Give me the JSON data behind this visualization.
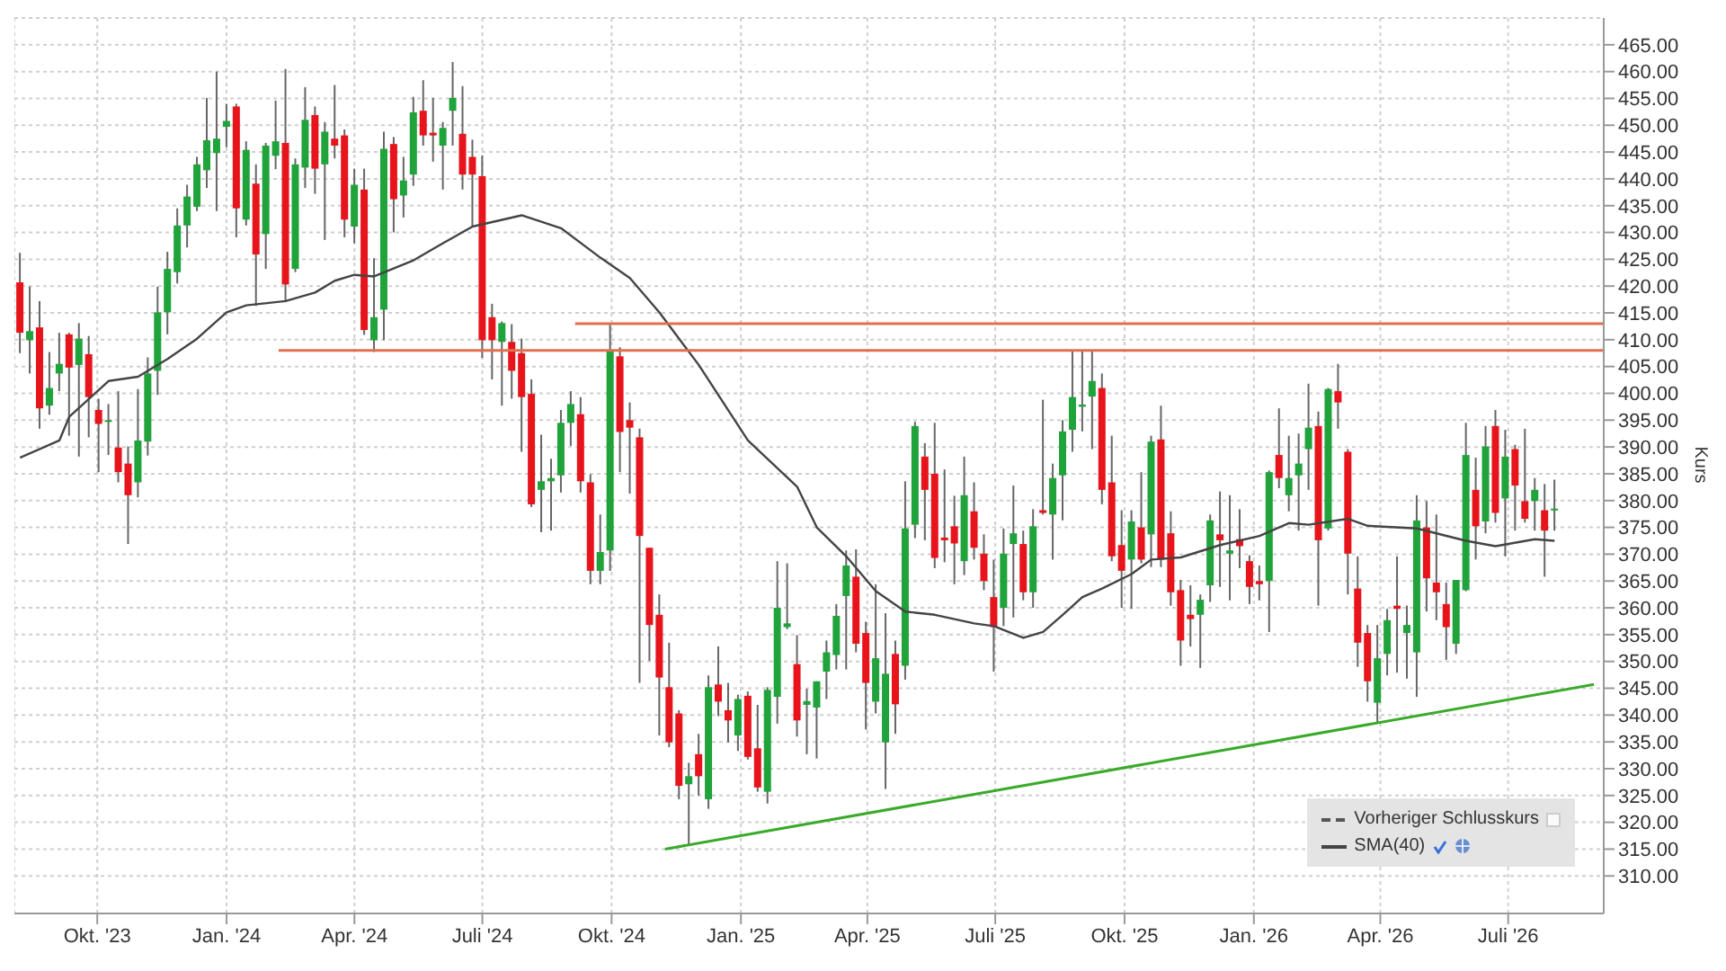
{
  "chart_data": {
    "type": "candlestick",
    "ylabel": "Kurs",
    "grid": true,
    "legend": "bottom right",
    "colors": [
      "#e8141b",
      "#1fa33a",
      "#e8141b",
      "#1fa33a",
      "#1fa33a",
      "#e8141b",
      "#1fa33a",
      "#e8141b",
      "#e8141b",
      "#1fa33a",
      "#e8141b",
      "#e8141b",
      "#1fa33a",
      "#1fa33a",
      "#1fa33a",
      "#1fa33a",
      "#1fa33a",
      "#1fa33a",
      "#1fa33a",
      "#1fa33a",
      "#1fa33a",
      "#1fa33a",
      "#e8141b",
      "#1fa33a",
      "#e8141b",
      "#1fa33a",
      "#1fa33a",
      "#e8141b",
      "#1fa33a",
      "#1fa33a",
      "#e8141b",
      "#1fa33a",
      "#e8141b",
      "#e8141b",
      "#1fa33a",
      "#e8141b",
      "#1fa33a",
      "#1fa33a",
      "#e8141b",
      "#1fa33a",
      "#1fa33a",
      "#e8141b",
      "#e8141b",
      "#1fa33a",
      "#1fa33a",
      "#e8141b",
      "#e8141b",
      "#e8141b",
      "#e8141b",
      "#1fa33a",
      "#e8141b",
      "#e8141b",
      "#e8141b",
      "#1fa33a",
      "#1fa33a",
      "#1fa33a",
      "#1fa33a",
      "#e8141b",
      "#e8141b",
      "#1fa33a",
      "#1fa33a",
      "#e8141b",
      "#e8141b",
      "#e8141b",
      "#e8141b",
      "#e8141b",
      "#e8141b",
      "#e8141b",
      "#1fa33a",
      "#e8141b",
      "#1fa33a",
      "#e8141b",
      "#e8141b",
      "#1fa33a",
      "#e8141b",
      "#e8141b",
      "#1fa33a",
      "#1fa33a",
      "#1fa33a",
      "#e8141b",
      "#1fa33a",
      "#1fa33a",
      "#1fa33a",
      "#1fa33a",
      "#1fa33a",
      "#e8141b",
      "#e8141b",
      "#1fa33a",
      "#1fa33a",
      "#e8141b",
      "#1fa33a",
      "#1fa33a",
      "#e8141b",
      "#e8141b",
      "#e8141b",
      "#e8141b",
      "#1fa33a",
      "#e8141b",
      "#e8141b",
      "#e8141b",
      "#1fa33a",
      "#1fa33a",
      "#e8141b",
      "#1fa33a",
      "#e8141b",
      "#1fa33a",
      "#1fa33a",
      "#1fa33a",
      "#1fa33a",
      "#1fa33a",
      "#e8141b",
      "#e8141b",
      "#e8141b",
      "#1fa33a",
      "#e8141b",
      "#1fa33a",
      "#e8141b",
      "#e8141b",
      "#e8141b",
      "#e8141b",
      "#1fa33a",
      "#1fa33a",
      "#e8141b",
      "#1fa33a",
      "#e8141b",
      "#e8141b",
      "#e8141b",
      "#1fa33a",
      "#e8141b",
      "#1fa33a",
      "#1fa33a",
      "#1fa33a",
      "#e8141b",
      "#1fa33a",
      "#e8141b",
      "#e8141b",
      "#e8141b",
      "#e8141b",
      "#1fa33a",
      "#1fa33a",
      "#e8141b",
      "#1fa33a",
      "#1fa33a",
      "#e8141b",
      "#e8141b",
      "#e8141b",
      "#1fa33a",
      "#1fa33a",
      "#e8141b",
      "#1fa33a",
      "#e8141b",
      "#1fa33a",
      "#e8141b",
      "#e8141b",
      "#1fa33a",
      "#e8141b",
      "#1fa33a"
    ],
    "annotations": [
      "Vorheriger Schlusskurs"
    ],
    "xlim": [
      "2023-08-03",
      "2026-09-07"
    ],
    "xticks": [
      {
        "value": "2023-10-01",
        "label": "Okt. '23"
      },
      {
        "value": "2024-01-01",
        "label": "Jan. '24"
      },
      {
        "value": "2024-04-01",
        "label": "Apr. '24"
      },
      {
        "value": "2024-07-01",
        "label": "Juli '24"
      },
      {
        "value": "2024-10-01",
        "label": "Okt. '24"
      },
      {
        "value": "2025-01-01",
        "label": "Jan. '25"
      },
      {
        "value": "2025-04-01",
        "label": "Apr. '25"
      },
      {
        "value": "2025-07-01",
        "label": "Juli '25"
      },
      {
        "value": "2025-10-01",
        "label": "Okt. '25"
      },
      {
        "value": "2026-01-01",
        "label": "Jan. '26"
      },
      {
        "value": "2026-04-01",
        "label": "Apr. '26"
      },
      {
        "value": "2026-07-01",
        "label": "Juli '26"
      }
    ],
    "ylim": [
      303,
      470
    ],
    "yticks": [
      {
        "value": 310,
        "label": "310.00"
      },
      {
        "value": 315,
        "label": "315.00"
      },
      {
        "value": 320,
        "label": "320.00"
      },
      {
        "value": 325,
        "label": "325.00"
      },
      {
        "value": 330,
        "label": "330.00"
      },
      {
        "value": 335,
        "label": "335.00"
      },
      {
        "value": 340,
        "label": "340.00"
      },
      {
        "value": 345,
        "label": "345.00"
      },
      {
        "value": 350,
        "label": "350.00"
      },
      {
        "value": 355,
        "label": "355.00"
      },
      {
        "value": 360,
        "label": "360.00"
      },
      {
        "value": 365,
        "label": "365.00"
      },
      {
        "value": 370,
        "label": "370.00"
      },
      {
        "value": 375,
        "label": "375.00"
      },
      {
        "value": 380,
        "label": "380.00"
      },
      {
        "value": 385,
        "label": "385.00"
      },
      {
        "value": 390,
        "label": "390.00"
      },
      {
        "value": 395,
        "label": "395.00"
      },
      {
        "value": 400,
        "label": "400.00"
      },
      {
        "value": 405,
        "label": "405.00"
      },
      {
        "value": 410,
        "label": "410.00"
      },
      {
        "value": 415,
        "label": "415.00"
      },
      {
        "value": 420,
        "label": "420.00"
      },
      {
        "value": 425,
        "label": "425.00"
      },
      {
        "value": 430,
        "label": "430.00"
      },
      {
        "value": 435,
        "label": "435.00"
      },
      {
        "value": 440,
        "label": "440.00"
      },
      {
        "value": 445,
        "label": "445.00"
      },
      {
        "value": 450,
        "label": "450.00"
      },
      {
        "value": 455,
        "label": "455.00"
      },
      {
        "value": 460,
        "label": "460.00"
      },
      {
        "value": 465,
        "label": "465.00"
      }
    ],
    "x": [
      "2023-08-07",
      "2023-08-14",
      "2023-08-21",
      "2023-08-28",
      "2023-09-04",
      "2023-09-11",
      "2023-09-18",
      "2023-09-25",
      "2023-10-02",
      "2023-10-09",
      "2023-10-16",
      "2023-10-23",
      "2023-10-30",
      "2023-11-06",
      "2023-11-13",
      "2023-11-20",
      "2023-11-27",
      "2023-12-04",
      "2023-12-11",
      "2023-12-18",
      "2023-12-25",
      "2024-01-01",
      "2024-01-08",
      "2024-01-15",
      "2024-01-22",
      "2024-01-29",
      "2024-02-05",
      "2024-02-12",
      "2024-02-19",
      "2024-02-26",
      "2024-03-04",
      "2024-03-11",
      "2024-03-18",
      "2024-03-25",
      "2024-04-01",
      "2024-04-08",
      "2024-04-15",
      "2024-04-22",
      "2024-04-29",
      "2024-05-06",
      "2024-05-13",
      "2024-05-20",
      "2024-05-27",
      "2024-06-03",
      "2024-06-10",
      "2024-06-17",
      "2024-06-24",
      "2024-07-01",
      "2024-07-08",
      "2024-07-15",
      "2024-07-22",
      "2024-07-29",
      "2024-08-05",
      "2024-08-12",
      "2024-08-19",
      "2024-08-26",
      "2024-09-02",
      "2024-09-09",
      "2024-09-16",
      "2024-09-23",
      "2024-09-30",
      "2024-10-07",
      "2024-10-14",
      "2024-10-21",
      "2024-10-28",
      "2024-11-04",
      "2024-11-11",
      "2024-11-18",
      "2024-11-25",
      "2024-12-02",
      "2024-12-09",
      "2024-12-16",
      "2024-12-23",
      "2024-12-30",
      "2025-01-06",
      "2025-01-13",
      "2025-01-20",
      "2025-01-27",
      "2025-02-03",
      "2025-02-10",
      "2025-02-17",
      "2025-02-24",
      "2025-03-03",
      "2025-03-10",
      "2025-03-17",
      "2025-03-24",
      "2025-03-31",
      "2025-04-07",
      "2025-04-14",
      "2025-04-21",
      "2025-04-28",
      "2025-05-05",
      "2025-05-12",
      "2025-05-19",
      "2025-05-26",
      "2025-06-02",
      "2025-06-09",
      "2025-06-16",
      "2025-06-23",
      "2025-06-30",
      "2025-07-07",
      "2025-07-14",
      "2025-07-21",
      "2025-07-28",
      "2025-08-04",
      "2025-08-11",
      "2025-08-18",
      "2025-08-25",
      "2025-09-01",
      "2025-09-08",
      "2025-09-15",
      "2025-09-22",
      "2025-09-29",
      "2025-10-06",
      "2025-10-13",
      "2025-10-20",
      "2025-10-27",
      "2025-11-03",
      "2025-11-10",
      "2025-11-17",
      "2025-11-24",
      "2025-12-01",
      "2025-12-08",
      "2025-12-15",
      "2025-12-22",
      "2025-12-29",
      "2026-01-05",
      "2026-01-12",
      "2026-01-19",
      "2026-01-26",
      "2026-02-02",
      "2026-02-09",
      "2026-02-16",
      "2026-02-23",
      "2026-03-02",
      "2026-03-09",
      "2026-03-16",
      "2026-03-23",
      "2026-03-30",
      "2026-04-06",
      "2026-04-13",
      "2026-04-20",
      "2026-04-27",
      "2026-05-04",
      "2026-05-11",
      "2026-05-18",
      "2026-05-25",
      "2026-06-01",
      "2026-06-08",
      "2026-06-15",
      "2026-06-22",
      "2026-06-29",
      "2026-07-06",
      "2026-07-13",
      "2026-07-20",
      "2026-07-27",
      "2026-08-03"
    ],
    "ohlc": [
      [
        420.7,
        426.2,
        407.5,
        411.3
      ],
      [
        409.9,
        419.9,
        403.7,
        411.6
      ],
      [
        412.3,
        417.2,
        393.4,
        397.2
      ],
      [
        397.7,
        407.7,
        396.0,
        401.0
      ],
      [
        403.7,
        411.3,
        400.4,
        405.5
      ],
      [
        411.0,
        411.3,
        392.1,
        404.8
      ],
      [
        405.3,
        413.1,
        388.2,
        410.2
      ],
      [
        407.3,
        410.7,
        391.8,
        399.3
      ],
      [
        396.9,
        399.0,
        385.3,
        394.3
      ],
      [
        394.7,
        398.0,
        388.5,
        395.0
      ],
      [
        389.9,
        400.4,
        383.4,
        385.3
      ],
      [
        386.9,
        390.1,
        371.9,
        381.0
      ],
      [
        383.4,
        400.8,
        380.6,
        391.2
      ],
      [
        391.0,
        406.7,
        388.4,
        403.7
      ],
      [
        404.2,
        419.9,
        399.7,
        415.1
      ],
      [
        415.1,
        426.4,
        411.0,
        423.2
      ],
      [
        422.6,
        434.5,
        420.5,
        431.3
      ],
      [
        431.3,
        438.9,
        427.2,
        436.7
      ],
      [
        434.8,
        444.1,
        434.0,
        442.7
      ],
      [
        441.6,
        455.1,
        438.3,
        447.2
      ],
      [
        444.8,
        460.0,
        434.0,
        447.5
      ],
      [
        449.7,
        454.0,
        445.9,
        450.8
      ],
      [
        453.5,
        454.0,
        429.1,
        434.5
      ],
      [
        432.4,
        447.0,
        431.3,
        445.4
      ],
      [
        439.1,
        442.7,
        416.3,
        425.9
      ],
      [
        429.7,
        446.7,
        423.2,
        446.2
      ],
      [
        444.3,
        454.6,
        441.8,
        447.0
      ],
      [
        446.7,
        460.5,
        417.2,
        420.3
      ],
      [
        423.2,
        443.8,
        422.6,
        442.7
      ],
      [
        442.1,
        457.1,
        438.3,
        451.0
      ],
      [
        451.9,
        453.5,
        437.2,
        441.9
      ],
      [
        442.7,
        450.6,
        428.6,
        448.8
      ],
      [
        447.5,
        457.5,
        443.8,
        446.2
      ],
      [
        448.1,
        449.2,
        429.1,
        432.4
      ],
      [
        431.1,
        441.9,
        428.0,
        438.9
      ],
      [
        438.0,
        441.9,
        410.9,
        411.8
      ],
      [
        409.9,
        425.2,
        407.7,
        414.2
      ],
      [
        415.6,
        448.8,
        409.9,
        445.6
      ],
      [
        446.5,
        447.8,
        430.0,
        436.2
      ],
      [
        436.9,
        444.1,
        432.8,
        439.7
      ],
      [
        440.8,
        455.3,
        438.7,
        452.4
      ],
      [
        452.7,
        458.4,
        446.2,
        448.1
      ],
      [
        448.6,
        455.1,
        443.2,
        448.1
      ],
      [
        446.2,
        450.6,
        438.0,
        449.5
      ],
      [
        452.7,
        461.8,
        446.2,
        455.1
      ],
      [
        448.4,
        457.3,
        438.0,
        440.8
      ],
      [
        444.1,
        447.3,
        431.1,
        440.8
      ],
      [
        440.5,
        444.3,
        406.6,
        409.9
      ],
      [
        414.2,
        416.7,
        402.6,
        409.9
      ],
      [
        409.6,
        413.4,
        397.7,
        413.1
      ],
      [
        409.6,
        412.9,
        399.0,
        404.2
      ],
      [
        407.5,
        410.2,
        389.1,
        399.3
      ],
      [
        399.9,
        402.6,
        378.8,
        379.3
      ],
      [
        382.0,
        392.3,
        374.1,
        383.6
      ],
      [
        383.6,
        387.8,
        374.4,
        384.2
      ],
      [
        384.7,
        396.9,
        381.5,
        394.5
      ],
      [
        394.5,
        400.4,
        390.2,
        398.0
      ],
      [
        396.1,
        399.3,
        381.5,
        383.6
      ],
      [
        383.4,
        384.9,
        364.4,
        366.9
      ],
      [
        366.9,
        377.4,
        364.4,
        370.4
      ],
      [
        370.7,
        412.9,
        366.9,
        408.0
      ],
      [
        406.9,
        408.6,
        385.3,
        392.8
      ],
      [
        395.0,
        398.3,
        381.3,
        393.6
      ],
      [
        391.8,
        393.4,
        346.0,
        373.4
      ],
      [
        371.2,
        371.2,
        350.1,
        356.8
      ],
      [
        358.7,
        362.5,
        336.2,
        347.0
      ],
      [
        345.2,
        353.5,
        334.0,
        334.9
      ],
      [
        340.3,
        340.9,
        324.3,
        326.8
      ],
      [
        327.1,
        331.1,
        315.6,
        328.6
      ],
      [
        332.7,
        336.5,
        325.0,
        328.6
      ],
      [
        324.3,
        347.4,
        322.5,
        345.2
      ],
      [
        345.7,
        352.8,
        339.8,
        342.5
      ],
      [
        340.9,
        346.0,
        334.9,
        339.0
      ],
      [
        336.2,
        343.8,
        333.3,
        343.0
      ],
      [
        343.6,
        344.4,
        331.7,
        332.2
      ],
      [
        333.8,
        341.9,
        325.7,
        326.5
      ],
      [
        325.7,
        345.2,
        323.5,
        344.7
      ],
      [
        343.4,
        368.7,
        338.4,
        360.0
      ],
      [
        356.4,
        368.3,
        356.0,
        357.1
      ],
      [
        349.5,
        354.9,
        336.0,
        339.0
      ],
      [
        341.9,
        344.9,
        332.7,
        342.6
      ],
      [
        341.4,
        346.3,
        331.9,
        346.3
      ],
      [
        348.1,
        353.9,
        343.0,
        351.7
      ],
      [
        351.2,
        360.7,
        348.5,
        358.5
      ],
      [
        362.2,
        370.7,
        348.5,
        367.9
      ],
      [
        365.8,
        370.9,
        351.7,
        353.3
      ],
      [
        355.3,
        357.4,
        337.3,
        346.0
      ],
      [
        342.5,
        364.4,
        340.3,
        350.6
      ],
      [
        334.9,
        359.0,
        326.2,
        347.7
      ],
      [
        351.4,
        353.9,
        336.5,
        342.0
      ],
      [
        349.2,
        383.6,
        346.6,
        374.8
      ],
      [
        375.5,
        394.7,
        373.0,
        393.9
      ],
      [
        388.2,
        390.7,
        372.6,
        382.0
      ],
      [
        385.0,
        394.5,
        367.4,
        369.3
      ],
      [
        373.1,
        385.8,
        368.5,
        372.6
      ],
      [
        375.2,
        380.9,
        364.4,
        372.0
      ],
      [
        368.7,
        388.2,
        366.1,
        381.0
      ],
      [
        378.0,
        383.4,
        369.0,
        371.2
      ],
      [
        370.1,
        373.7,
        363.3,
        365.0
      ],
      [
        362.0,
        369.0,
        348.1,
        356.4
      ],
      [
        360.0,
        374.8,
        356.6,
        370.1
      ],
      [
        371.9,
        382.8,
        358.2,
        373.9
      ],
      [
        371.9,
        374.4,
        361.4,
        362.9
      ],
      [
        362.9,
        378.4,
        360.0,
        375.2
      ],
      [
        378.2,
        398.8,
        377.4,
        377.7
      ],
      [
        377.4,
        386.9,
        369.0,
        384.2
      ],
      [
        384.7,
        395.0,
        376.3,
        392.9
      ],
      [
        393.2,
        408.0,
        389.1,
        399.3
      ],
      [
        397.5,
        408.0,
        392.9,
        397.9
      ],
      [
        399.4,
        408.0,
        389.6,
        402.3
      ],
      [
        401.0,
        403.7,
        379.3,
        382.0
      ],
      [
        383.4,
        392.1,
        368.7,
        369.6
      ],
      [
        371.7,
        378.2,
        360.0,
        366.9
      ],
      [
        369.0,
        378.2,
        359.8,
        376.1
      ],
      [
        375.0,
        385.3,
        368.3,
        369.0
      ],
      [
        373.7,
        392.1,
        367.6,
        391.0
      ],
      [
        391.4,
        397.7,
        367.6,
        369.0
      ],
      [
        373.9,
        378.0,
        360.4,
        362.9
      ],
      [
        363.3,
        365.2,
        349.2,
        353.9
      ],
      [
        358.7,
        364.2,
        352.8,
        357.9
      ],
      [
        358.7,
        362.5,
        348.8,
        361.5
      ],
      [
        364.2,
        377.4,
        361.1,
        376.3
      ],
      [
        373.7,
        381.7,
        363.9,
        372.6
      ],
      [
        370.1,
        381.0,
        361.4,
        370.7
      ],
      [
        372.8,
        378.4,
        367.4,
        371.5
      ],
      [
        368.7,
        369.8,
        360.7,
        363.9
      ],
      [
        365.0,
        367.9,
        361.4,
        364.4
      ],
      [
        365.0,
        385.6,
        355.5,
        385.3
      ],
      [
        388.5,
        397.2,
        382.3,
        384.2
      ],
      [
        381.0,
        392.1,
        378.0,
        384.2
      ],
      [
        384.7,
        392.5,
        374.4,
        386.9
      ],
      [
        389.6,
        401.8,
        382.0,
        393.6
      ],
      [
        393.9,
        396.6,
        360.4,
        372.6
      ],
      [
        374.8,
        401.0,
        374.4,
        400.8
      ],
      [
        400.4,
        405.5,
        393.4,
        398.3
      ],
      [
        389.1,
        389.6,
        362.5,
        370.1
      ],
      [
        363.6,
        369.6,
        349.0,
        353.5
      ],
      [
        355.3,
        356.8,
        342.5,
        346.3
      ],
      [
        342.3,
        356.8,
        338.7,
        350.6
      ],
      [
        351.4,
        359.8,
        347.4,
        357.7
      ],
      [
        360.4,
        369.6,
        347.9,
        359.8
      ],
      [
        355.3,
        360.4,
        346.8,
        356.8
      ],
      [
        351.7,
        381.0,
        343.4,
        376.3
      ],
      [
        375.0,
        379.9,
        359.3,
        365.5
      ],
      [
        364.7,
        377.4,
        357.7,
        362.9
      ],
      [
        360.7,
        364.7,
        350.3,
        356.4
      ],
      [
        353.3,
        365.2,
        351.4,
        365.2
      ],
      [
        363.3,
        394.5,
        363.1,
        388.5
      ],
      [
        382.0,
        388.0,
        369.0,
        375.2
      ],
      [
        376.1,
        393.9,
        373.9,
        390.1
      ],
      [
        393.9,
        396.9,
        375.9,
        377.7
      ],
      [
        380.4,
        393.2,
        369.6,
        388.2
      ],
      [
        389.6,
        390.4,
        374.4,
        382.8
      ],
      [
        379.9,
        393.4,
        375.9,
        376.6
      ],
      [
        379.9,
        384.2,
        374.4,
        382.0
      ],
      [
        378.2,
        383.1,
        365.8,
        374.4
      ],
      [
        378.2,
        383.9,
        374.4,
        378.5
      ]
    ],
    "series": [
      {
        "name": "SMA(40)",
        "type": "line",
        "color": "#444444",
        "x": [
          "2023-08-07",
          "2023-09-04",
          "2023-09-11",
          "2023-10-09",
          "2023-10-30",
          "2023-11-20",
          "2023-12-11",
          "2024-01-01",
          "2024-01-15",
          "2024-02-12",
          "2024-03-04",
          "2024-03-18",
          "2024-04-01",
          "2024-04-15",
          "2024-05-13",
          "2024-06-03",
          "2024-06-24",
          "2024-07-29",
          "2024-08-26",
          "2024-09-23",
          "2024-10-14",
          "2024-11-04",
          "2024-12-02",
          "2025-01-06",
          "2025-02-10",
          "2025-02-24",
          "2025-03-17",
          "2025-04-07",
          "2025-04-28",
          "2025-05-19",
          "2025-06-16",
          "2025-06-30",
          "2025-07-21",
          "2025-08-04",
          "2025-08-18",
          "2025-09-01",
          "2025-09-15",
          "2025-10-06",
          "2025-10-20",
          "2025-11-10",
          "2025-12-08",
          "2026-01-05",
          "2026-01-26",
          "2026-02-09",
          "2026-03-09",
          "2026-03-23",
          "2026-04-27",
          "2026-06-01",
          "2026-06-22",
          "2026-07-20",
          "2026-08-03"
        ],
        "values": [
          388.0,
          391.2,
          395.6,
          402.3,
          403.1,
          406.4,
          410.2,
          415.1,
          416.4,
          417.2,
          418.8,
          421.0,
          422.1,
          421.8,
          424.8,
          428.0,
          431.1,
          433.2,
          430.8,
          425.3,
          421.5,
          415.1,
          405.3,
          391.2,
          382.6,
          375.0,
          369.6,
          363.1,
          359.3,
          358.7,
          357.1,
          356.6,
          354.4,
          355.5,
          358.7,
          362.0,
          363.6,
          366.3,
          369.0,
          369.4,
          371.7,
          373.4,
          375.8,
          375.5,
          376.6,
          375.3,
          374.8,
          372.5,
          371.5,
          372.8,
          372.5
        ]
      },
      {
        "type": "line",
        "color": "#e0704f",
        "x": [
          "2024-09-05",
          "2026-09-07"
        ],
        "values": [
          413,
          413
        ]
      },
      {
        "type": "line",
        "color": "#e0704f",
        "x": [
          "2024-02-07",
          "2026-09-07"
        ],
        "values": [
          408,
          408
        ]
      },
      {
        "type": "line",
        "color": "#3aaa2a",
        "x": [
          "2024-11-08",
          "2026-08-31"
        ],
        "values": [
          315,
          345.7
        ]
      }
    ]
  }
}
